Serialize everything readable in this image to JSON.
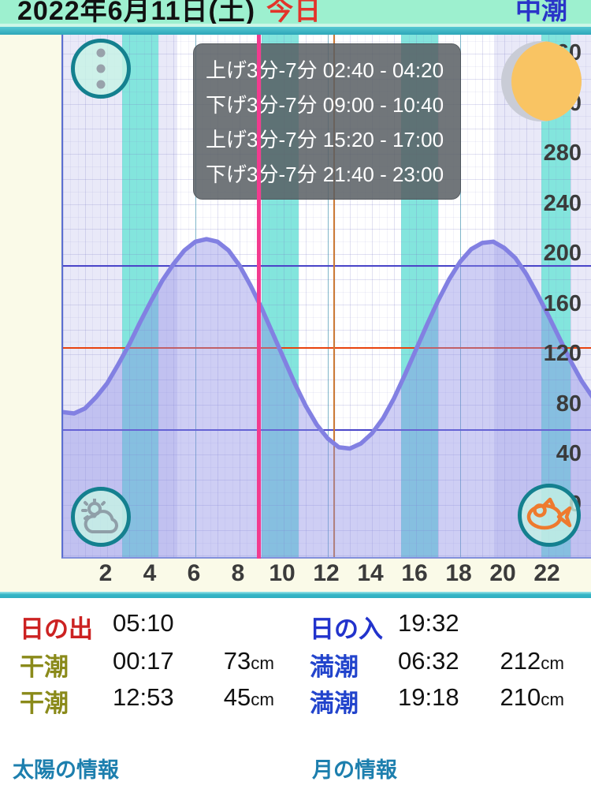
{
  "header": {
    "date": "2022年6月11日(土)",
    "today_label": "今日",
    "tide_type": "中潮"
  },
  "tooltip": {
    "lines": [
      "上げ3分-7分 02:40 - 04:20",
      "下げ3分-7分 09:00 - 10:40",
      "上げ3分-7分 15:20 - 17:00",
      "下げ3分-7分 21:40 - 23:00"
    ]
  },
  "chart_data": {
    "type": "line",
    "title": "tide-curve",
    "x_unit": "hour",
    "x_start": 0,
    "x_end": 24,
    "x_step": 0.5,
    "tide_cm": [
      74,
      73,
      77,
      86,
      97,
      112,
      128,
      146,
      163,
      179,
      192,
      203,
      210,
      212,
      210,
      203,
      191,
      175,
      157,
      137,
      117,
      97,
      79,
      64,
      53,
      46,
      45,
      49,
      57,
      69,
      85,
      104,
      124,
      144,
      163,
      180,
      194,
      204,
      209,
      210,
      205,
      197,
      184,
      168,
      151,
      133,
      115,
      99,
      86
    ],
    "y_ticks": [
      0,
      40,
      80,
      120,
      160,
      200,
      240,
      280,
      320,
      360
    ],
    "x_ticks": [
      2,
      4,
      6,
      8,
      10,
      12,
      14,
      16,
      18,
      20,
      22
    ],
    "ylim": [
      -43,
      375
    ],
    "now_hour": 8.94,
    "noon_line_hour": 12.3,
    "h_ref_lines": [
      {
        "cm": 191,
        "color": "#4b46c9"
      },
      {
        "cm": 125,
        "color": "#e8430e"
      },
      {
        "cm": 60,
        "color": "#4b46c9"
      }
    ],
    "night_bands": [
      [
        0,
        5.17
      ],
      [
        19.53,
        24
      ]
    ],
    "highlight_bands": [
      [
        2.67,
        4.33
      ],
      [
        9.0,
        10.67
      ],
      [
        15.33,
        17.0
      ],
      [
        21.67,
        23.0
      ]
    ],
    "major_vlines": [
      6,
      12,
      18
    ],
    "colors": {
      "curve": "#8280e2",
      "fill": "rgba(138,138,228,0.42)",
      "night": "#e9e9f8",
      "highlight": "#83e5dd",
      "now": "#f23b8f",
      "noon": "#cc7a35",
      "grid": "rgba(120,120,195,0.22)",
      "grid_minor": "rgba(140,140,210,0.10)",
      "major_vline": "rgba(30,140,160,0.5)"
    }
  },
  "icons": {
    "menu_dots_color": "#98a2ab",
    "weather_color": "#8f9fa8",
    "fish_color": "#ee7a2e",
    "moon_lit": "#f9c463",
    "moon_shadow": "#c9ccd6"
  },
  "info": {
    "rows": [
      {
        "l_label": "日の出",
        "l_time": "05:10",
        "l_value": "",
        "l_unit": "",
        "r_label": "日の入",
        "r_time": "19:32",
        "r_value": "",
        "r_unit": ""
      },
      {
        "l_label": "干潮",
        "l_time": "00:17",
        "l_value": "73",
        "l_unit": "cm",
        "r_label": "満潮",
        "r_time": "06:32",
        "r_value": "212",
        "r_unit": "cm"
      },
      {
        "l_label": "干潮",
        "l_time": "12:53",
        "l_value": "45",
        "l_unit": "cm",
        "r_label": "満潮",
        "r_time": "19:18",
        "r_value": "210",
        "r_unit": "cm"
      }
    ],
    "links": {
      "sun": "太陽の情報",
      "moon": "月の情報"
    }
  }
}
